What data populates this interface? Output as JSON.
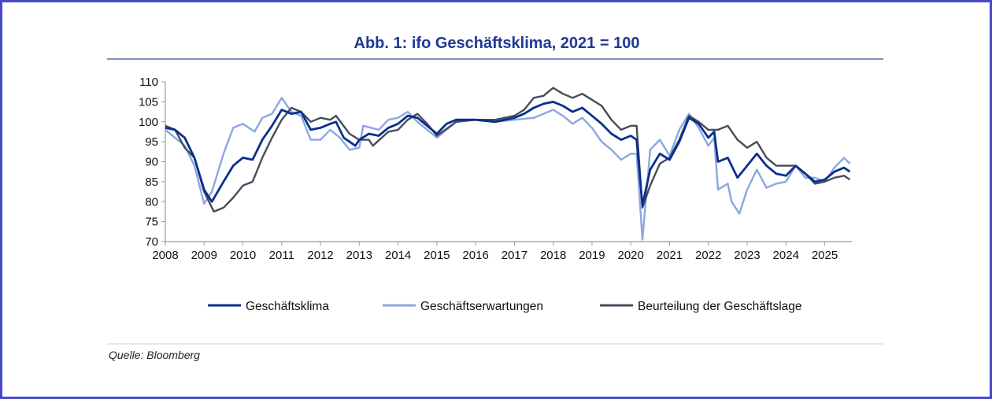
{
  "chart_data": {
    "type": "line",
    "title": "Abb. 1: ifo Geschäftsklima, 2021 = 100",
    "xlabel": "",
    "ylabel": "",
    "xlim": [
      2008,
      2025.7
    ],
    "ylim": [
      70,
      110
    ],
    "yticks": [
      70,
      75,
      80,
      85,
      90,
      95,
      100,
      105,
      110
    ],
    "xticks": [
      "2008",
      "2009",
      "2010",
      "2011",
      "2012",
      "2013",
      "2014",
      "2015",
      "2016",
      "2017",
      "2018",
      "2019",
      "2020",
      "2021",
      "2022",
      "2023",
      "2024",
      "2025"
    ],
    "grid": false,
    "legend_position": "bottom",
    "source": "Quelle: Bloomberg",
    "series": [
      {
        "name": "Geschäftsklima",
        "color": "#0b2f8e",
        "x": [
          2008.0,
          2008.25,
          2008.5,
          2008.75,
          2009.0,
          2009.2,
          2009.5,
          2009.75,
          2010.0,
          2010.25,
          2010.5,
          2010.75,
          2011.0,
          2011.25,
          2011.5,
          2011.75,
          2012.0,
          2012.25,
          2012.4,
          2012.6,
          2012.9,
          2013.0,
          2013.25,
          2013.5,
          2013.75,
          2014.0,
          2014.25,
          2014.5,
          2014.75,
          2015.0,
          2015.25,
          2015.5,
          2016.0,
          2016.5,
          2017.0,
          2017.25,
          2017.5,
          2017.75,
          2018.0,
          2018.25,
          2018.5,
          2018.75,
          2019.0,
          2019.25,
          2019.5,
          2019.75,
          2020.0,
          2020.15,
          2020.3,
          2020.5,
          2020.75,
          2021.0,
          2021.25,
          2021.5,
          2021.75,
          2022.0,
          2022.15,
          2022.25,
          2022.5,
          2022.75,
          2023.0,
          2023.25,
          2023.5,
          2023.75,
          2024.0,
          2024.25,
          2024.5,
          2024.75,
          2025.0,
          2025.25,
          2025.5,
          2025.65
        ],
        "y": [
          98.5,
          98,
          96,
          91,
          83,
          80,
          85,
          89,
          91,
          90.5,
          95.5,
          99,
          103,
          102,
          102.5,
          98,
          98.5,
          99.5,
          100,
          96,
          94,
          95.5,
          97,
          96.5,
          98.5,
          99.5,
          101.5,
          101,
          99,
          97,
          99.5,
          100.5,
          100.5,
          100,
          101,
          102,
          103.5,
          104.5,
          105,
          104,
          102.5,
          103.5,
          101.5,
          99.5,
          97,
          95.5,
          96.5,
          95.5,
          79,
          88,
          92,
          90.5,
          95,
          101,
          99.5,
          96,
          97.5,
          90,
          91,
          86,
          89,
          92,
          89,
          87,
          86.5,
          89,
          87,
          85,
          85.5,
          87.5,
          88.5,
          87.5
        ]
      },
      {
        "name": "Geschäftserwartungen",
        "color": "#8aa7e0",
        "x": [
          2008.0,
          2008.5,
          2008.75,
          2009.0,
          2009.2,
          2009.5,
          2009.75,
          2010.0,
          2010.3,
          2010.5,
          2010.75,
          2011.0,
          2011.25,
          2011.5,
          2011.75,
          2012.0,
          2012.25,
          2012.5,
          2012.75,
          2013.0,
          2013.1,
          2013.5,
          2013.75,
          2014.0,
          2014.25,
          2014.5,
          2015.0,
          2015.5,
          2016.0,
          2016.5,
          2017.0,
          2017.5,
          2017.75,
          2018.0,
          2018.25,
          2018.5,
          2018.75,
          2019.0,
          2019.25,
          2019.5,
          2019.75,
          2020.0,
          2020.15,
          2020.3,
          2020.5,
          2020.75,
          2021.0,
          2021.25,
          2021.5,
          2021.75,
          2022.0,
          2022.15,
          2022.25,
          2022.5,
          2022.6,
          2022.8,
          2023.0,
          2023.25,
          2023.5,
          2023.75,
          2024.0,
          2024.25,
          2024.5,
          2024.75,
          2025.0,
          2025.25,
          2025.5,
          2025.65
        ],
        "y": [
          98,
          94,
          89,
          79.5,
          82.5,
          92,
          98.5,
          99.5,
          97.5,
          101,
          102,
          106,
          102.5,
          101.5,
          95.5,
          95.5,
          98,
          96,
          93,
          93.5,
          99,
          98,
          100.5,
          101,
          102.5,
          100,
          96,
          100,
          100.5,
          100,
          100.5,
          101,
          102,
          103,
          101.5,
          99.5,
          101,
          98.5,
          95,
          93,
          90.5,
          92,
          92,
          70.5,
          93,
          95.5,
          91.5,
          98,
          102,
          98.5,
          94,
          96,
          83,
          84.5,
          80,
          77,
          83,
          88,
          83.5,
          84.5,
          85,
          89,
          86,
          86,
          85,
          88.5,
          91,
          89.5
        ]
      },
      {
        "name": "Beurteilung der Geschäftslage",
        "color": "#464c5a",
        "x": [
          2008.0,
          2008.25,
          2008.5,
          2008.75,
          2009.0,
          2009.25,
          2009.5,
          2009.75,
          2010.0,
          2010.25,
          2010.5,
          2010.75,
          2011.0,
          2011.25,
          2011.5,
          2011.75,
          2012.0,
          2012.25,
          2012.4,
          2012.75,
          2013.0,
          2013.25,
          2013.35,
          2013.75,
          2014.0,
          2014.25,
          2014.5,
          2014.75,
          2015.0,
          2015.5,
          2016.0,
          2016.5,
          2017.0,
          2017.25,
          2017.5,
          2017.75,
          2018.0,
          2018.25,
          2018.5,
          2018.75,
          2019.0,
          2019.25,
          2019.5,
          2019.75,
          2020.0,
          2020.15,
          2020.3,
          2020.5,
          2020.75,
          2021.0,
          2021.25,
          2021.5,
          2021.75,
          2022.0,
          2022.25,
          2022.5,
          2022.75,
          2023.0,
          2023.25,
          2023.5,
          2023.75,
          2024.0,
          2024.25,
          2024.5,
          2024.75,
          2025.0,
          2025.25,
          2025.5,
          2025.65
        ],
        "y": [
          99,
          98,
          93.5,
          91,
          82.5,
          77.5,
          78.5,
          81,
          84,
          85,
          91,
          96,
          100.5,
          103.5,
          102.5,
          100,
          101,
          100.5,
          101.5,
          97,
          95.5,
          95.5,
          94,
          97.5,
          98,
          100.5,
          102,
          99.5,
          96.5,
          100,
          100.5,
          100.5,
          101.5,
          103,
          106,
          106.5,
          108.5,
          107,
          106,
          107,
          105.5,
          104,
          100.5,
          98,
          99,
          99,
          78.5,
          84,
          89.5,
          91,
          95.5,
          101.5,
          100,
          98,
          98,
          99,
          95.5,
          93.5,
          95,
          91,
          89,
          89,
          89,
          87,
          84.5,
          85,
          86,
          86.5,
          85.5
        ]
      }
    ]
  }
}
